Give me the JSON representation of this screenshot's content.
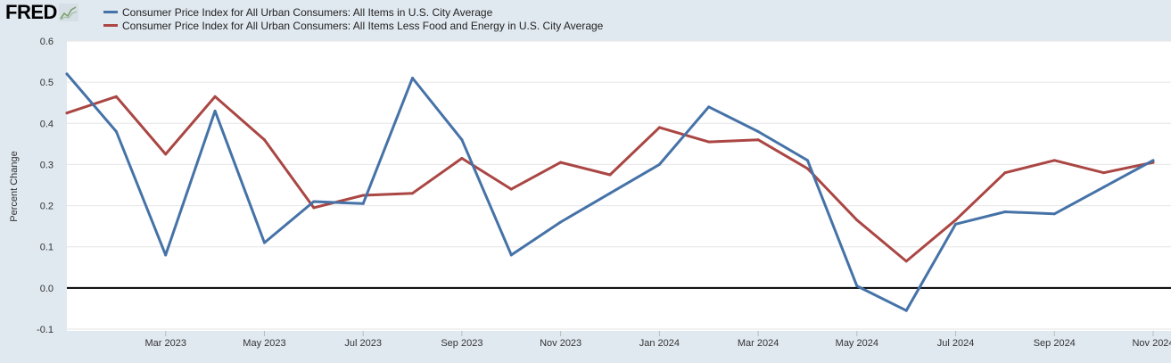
{
  "logo": {
    "text": "FRED",
    "icon": "line-chart-icon"
  },
  "chart_data": {
    "type": "line",
    "title": "",
    "xlabel": "",
    "ylabel": "Percent Change",
    "ylim": [
      -0.1,
      0.6
    ],
    "yticks": [
      -0.1,
      0.0,
      0.1,
      0.2,
      0.3,
      0.4,
      0.5,
      0.6
    ],
    "ytick_labels": [
      "-0.1",
      "0.0",
      "0.1",
      "0.2",
      "0.3",
      "0.4",
      "0.5",
      "0.6"
    ],
    "x": [
      "2023-01",
      "2023-02",
      "2023-03",
      "2023-04",
      "2023-05",
      "2023-06",
      "2023-07",
      "2023-08",
      "2023-09",
      "2023-10",
      "2023-11",
      "2023-12",
      "2024-01",
      "2024-02",
      "2024-03",
      "2024-04",
      "2024-05",
      "2024-06",
      "2024-07",
      "2024-08",
      "2024-09",
      "2024-10",
      "2024-11"
    ],
    "xticks": [
      {
        "index": 2,
        "label": "Mar 2023"
      },
      {
        "index": 4,
        "label": "May 2023"
      },
      {
        "index": 6,
        "label": "Jul 2023"
      },
      {
        "index": 8,
        "label": "Sep 2023"
      },
      {
        "index": 10,
        "label": "Nov 2023"
      },
      {
        "index": 12,
        "label": "Jan 2024"
      },
      {
        "index": 14,
        "label": "Mar 2024"
      },
      {
        "index": 16,
        "label": "May 2024"
      },
      {
        "index": 18,
        "label": "Jul 2024"
      },
      {
        "index": 20,
        "label": "Sep 2024"
      },
      {
        "index": 22,
        "label": "Nov 2024"
      }
    ],
    "zero_line": true,
    "grid": true,
    "series": [
      {
        "name": "Consumer Price Index for All Urban Consumers: All Items in U.S. City Average",
        "color": "#4572a7",
        "values": [
          0.52,
          0.38,
          0.08,
          0.43,
          0.11,
          0.21,
          0.205,
          0.51,
          0.36,
          0.08,
          0.16,
          0.23,
          0.3,
          0.44,
          0.38,
          0.31,
          0.005,
          -0.055,
          0.155,
          0.185,
          0.18,
          0.245,
          0.31
        ]
      },
      {
        "name": "Consumer Price Index for All Urban Consumers: All Items Less Food and Energy in U.S. City Average",
        "color": "#aa4643",
        "values": [
          0.425,
          0.465,
          0.325,
          0.465,
          0.36,
          0.195,
          0.225,
          0.23,
          0.315,
          0.24,
          0.305,
          0.275,
          0.39,
          0.355,
          0.36,
          0.29,
          0.165,
          0.065,
          0.165,
          0.28,
          0.31,
          0.28,
          0.305
        ]
      }
    ]
  }
}
